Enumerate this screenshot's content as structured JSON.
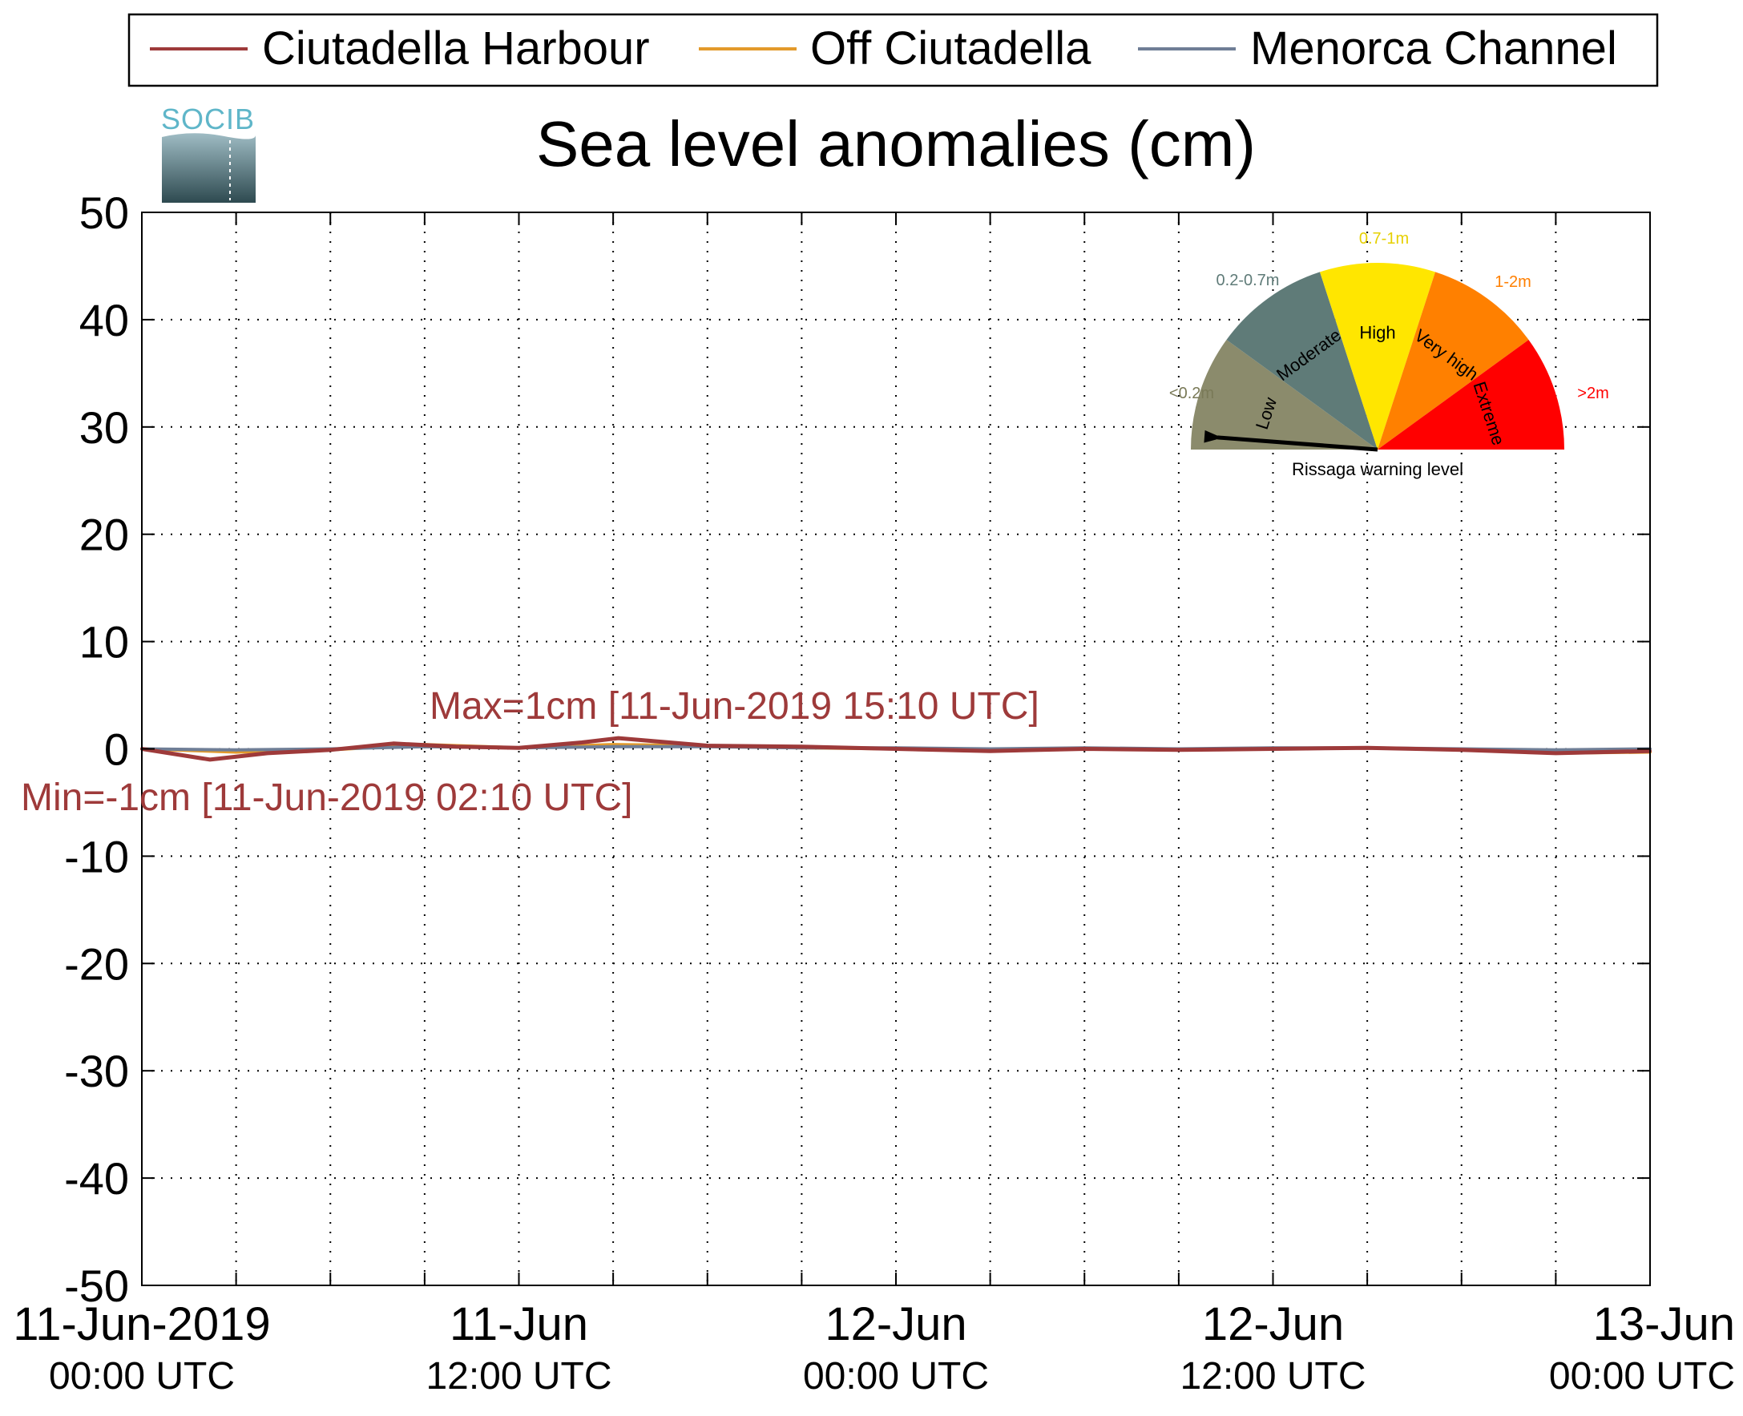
{
  "chart_data": {
    "type": "line",
    "title": "Sea level anomalies (cm)",
    "xlabel": "",
    "ylabel": "",
    "ylim": [
      -50,
      50
    ],
    "yticks": [
      50,
      40,
      30,
      20,
      10,
      0,
      -10,
      -20,
      -30,
      -40,
      -50
    ],
    "xlim": [
      "2019-06-11 00:00",
      "2019-06-13 00:00"
    ],
    "xticks": [
      {
        "t": "2019-06-11 00:00",
        "line1": "11-Jun-2019",
        "line2": "00:00 UTC"
      },
      {
        "t": "2019-06-11 12:00",
        "line1": "11-Jun",
        "line2": "12:00 UTC"
      },
      {
        "t": "2019-06-12 00:00",
        "line1": "12-Jun",
        "line2": "00:00 UTC"
      },
      {
        "t": "2019-06-12 12:00",
        "line1": "12-Jun",
        "line2": "12:00 UTC"
      },
      {
        "t": "2019-06-13 00:00",
        "line1": "13-Jun",
        "line2": "00:00 UTC"
      }
    ],
    "minor_xticks": [
      "2019-06-11 03:00",
      "2019-06-11 06:00",
      "2019-06-11 09:00",
      "2019-06-11 15:00",
      "2019-06-11 18:00",
      "2019-06-11 21:00",
      "2019-06-12 03:00",
      "2019-06-12 06:00",
      "2019-06-12 09:00",
      "2019-06-12 15:00",
      "2019-06-12 18:00",
      "2019-06-12 21:00"
    ],
    "grid": true,
    "legend_position": "top",
    "series": [
      {
        "name": "Ciutadella Harbour",
        "color": "#9e3a3a",
        "x": [
          "2019-06-11 00:00",
          "2019-06-11 02:10",
          "2019-06-11 04:00",
          "2019-06-11 06:00",
          "2019-06-11 08:00",
          "2019-06-11 10:00",
          "2019-06-11 12:00",
          "2019-06-11 14:00",
          "2019-06-11 15:10",
          "2019-06-11 18:00",
          "2019-06-11 21:00",
          "2019-06-12 00:00",
          "2019-06-12 03:00",
          "2019-06-12 06:00",
          "2019-06-12 09:00",
          "2019-06-12 12:00",
          "2019-06-12 15:00",
          "2019-06-12 18:00",
          "2019-06-12 21:00",
          "2019-06-13 00:00"
        ],
        "y": [
          0,
          -1,
          -0.4,
          -0.1,
          0.5,
          0.2,
          0.1,
          0.6,
          1,
          0.3,
          0.2,
          0,
          -0.2,
          0,
          -0.1,
          0,
          0.1,
          -0.1,
          -0.4,
          -0.2
        ]
      },
      {
        "name": "Off Ciutadella",
        "color": "#e39a2b",
        "x": [
          "2019-06-11 00:00",
          "2019-06-11 03:00",
          "2019-06-11 06:00",
          "2019-06-11 09:00",
          "2019-06-11 12:00",
          "2019-06-11 15:00",
          "2019-06-11 18:00",
          "2019-06-11 21:00",
          "2019-06-12 00:00",
          "2019-06-12 03:00",
          "2019-06-12 06:00",
          "2019-06-12 09:00",
          "2019-06-12 12:00",
          "2019-06-12 15:00",
          "2019-06-12 18:00",
          "2019-06-12 21:00",
          "2019-06-13 00:00"
        ],
        "y": [
          0,
          -0.3,
          -0.1,
          0.4,
          0.1,
          0.4,
          0.3,
          0.1,
          0,
          -0.2,
          0,
          -0.1,
          0,
          0.1,
          -0.1,
          -0.4,
          -0.3
        ]
      },
      {
        "name": "Menorca Channel",
        "color": "#6f7e96",
        "x": [
          "2019-06-11 00:00",
          "2019-06-11 03:00",
          "2019-06-11 06:00",
          "2019-06-11 09:00",
          "2019-06-11 12:00",
          "2019-06-11 15:00",
          "2019-06-11 18:00",
          "2019-06-11 21:00",
          "2019-06-12 00:00",
          "2019-06-12 03:00",
          "2019-06-12 06:00",
          "2019-06-12 09:00",
          "2019-06-12 12:00",
          "2019-06-12 15:00",
          "2019-06-12 18:00",
          "2019-06-12 21:00",
          "2019-06-13 00:00"
        ],
        "y": [
          0,
          -0.1,
          0,
          0.2,
          0.1,
          0.2,
          0.2,
          0.1,
          0.1,
          0,
          0.1,
          0,
          0.1,
          0.1,
          0,
          -0.1,
          0
        ]
      }
    ],
    "annotations": [
      {
        "text": "Max=1cm [11-Jun-2019 15:10 UTC]",
        "color": "#9e3a3a"
      },
      {
        "text": "Min=-1cm [11-Jun-2019 02:10 UTC]",
        "color": "#9e3a3a"
      }
    ]
  },
  "logo": {
    "text": "SOCIB"
  },
  "gauge": {
    "caption": "Rissaga warning level",
    "level": "Low",
    "sectors": [
      {
        "label": "Low",
        "range": "<0.2m",
        "color": "#8b8b6c",
        "range_color": "#7a7a58"
      },
      {
        "label": "Moderate",
        "range": "0.2-0.7m",
        "color": "#5f7b78",
        "range_color": "#5f7b78"
      },
      {
        "label": "High",
        "range": "0.7-1m",
        "color": "#ffe600",
        "range_color": "#e6d000"
      },
      {
        "label": "Very high",
        "range": "1-2m",
        "color": "#ff8000",
        "range_color": "#ff7f00"
      },
      {
        "label": "Extreme",
        "range": ">2m",
        "color": "#ff0000",
        "range_color": "#ff0000"
      }
    ]
  }
}
